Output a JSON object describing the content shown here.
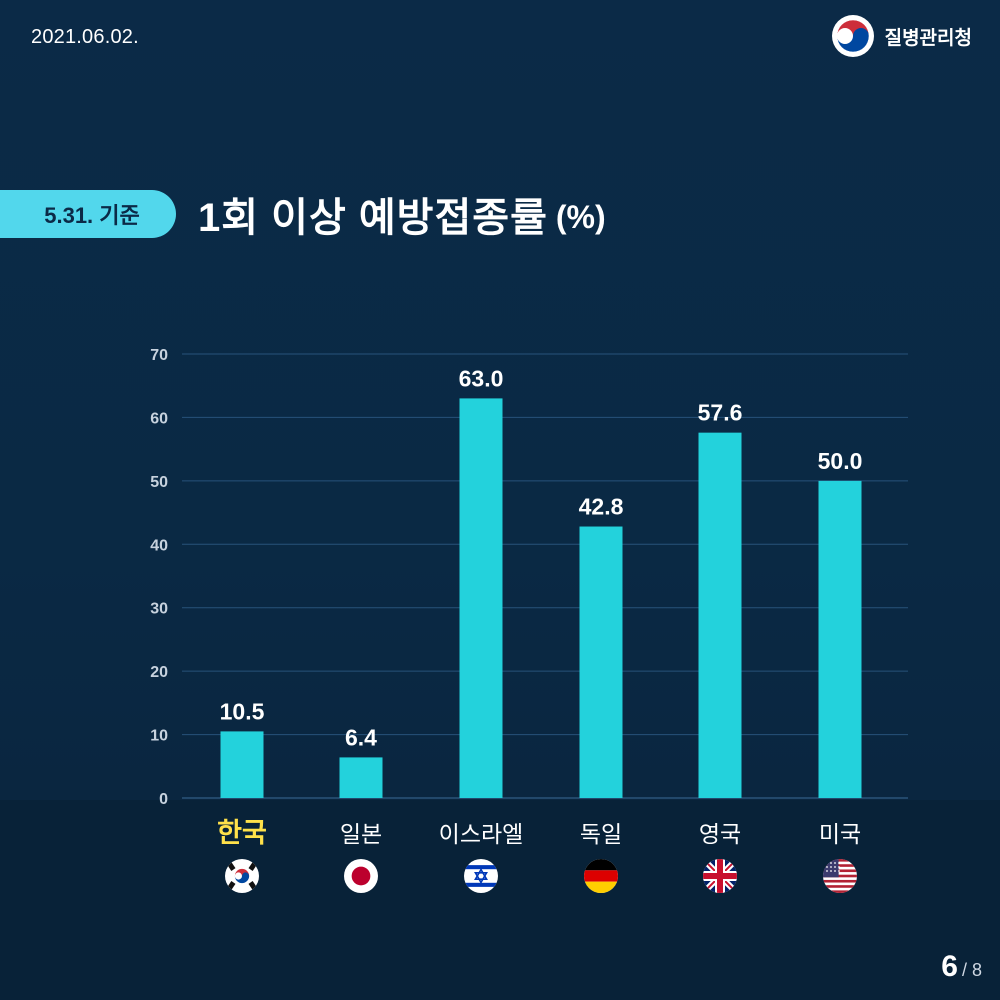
{
  "header": {
    "date": "2021.06.02.",
    "agency_name": "질병관리청",
    "agency_logo_icon": "taegeuk-emblem-icon"
  },
  "title": {
    "basis_badge": "5.31. 기준",
    "main": "1회 이상 예방접종률",
    "unit": "(%)"
  },
  "colors": {
    "bar": "#23d2dc",
    "highlight_label": "#ffe14a",
    "badge": "#52d7ec",
    "gridline": "#27527a"
  },
  "chart_data": {
    "type": "bar",
    "title": "1회 이상 예방접종률",
    "ylabel": "(%)",
    "ylim": [
      0,
      70
    ],
    "yticks": [
      0,
      10,
      20,
      30,
      40,
      50,
      60,
      70
    ],
    "grid": true,
    "categories": [
      "한국",
      "일본",
      "이스라엘",
      "독일",
      "영국",
      "미국"
    ],
    "values": [
      10.5,
      6.4,
      63.0,
      42.8,
      57.6,
      50.0
    ],
    "value_labels": [
      "10.5",
      "6.4",
      "63.0",
      "42.8",
      "57.6",
      "50.0"
    ],
    "highlight_category": "한국",
    "flags": [
      "south-korea-flag-icon",
      "japan-flag-icon",
      "israel-flag-icon",
      "germany-flag-icon",
      "uk-flag-icon",
      "usa-flag-icon"
    ]
  },
  "pagination": {
    "current": "6",
    "separator_total": "/ 8"
  }
}
